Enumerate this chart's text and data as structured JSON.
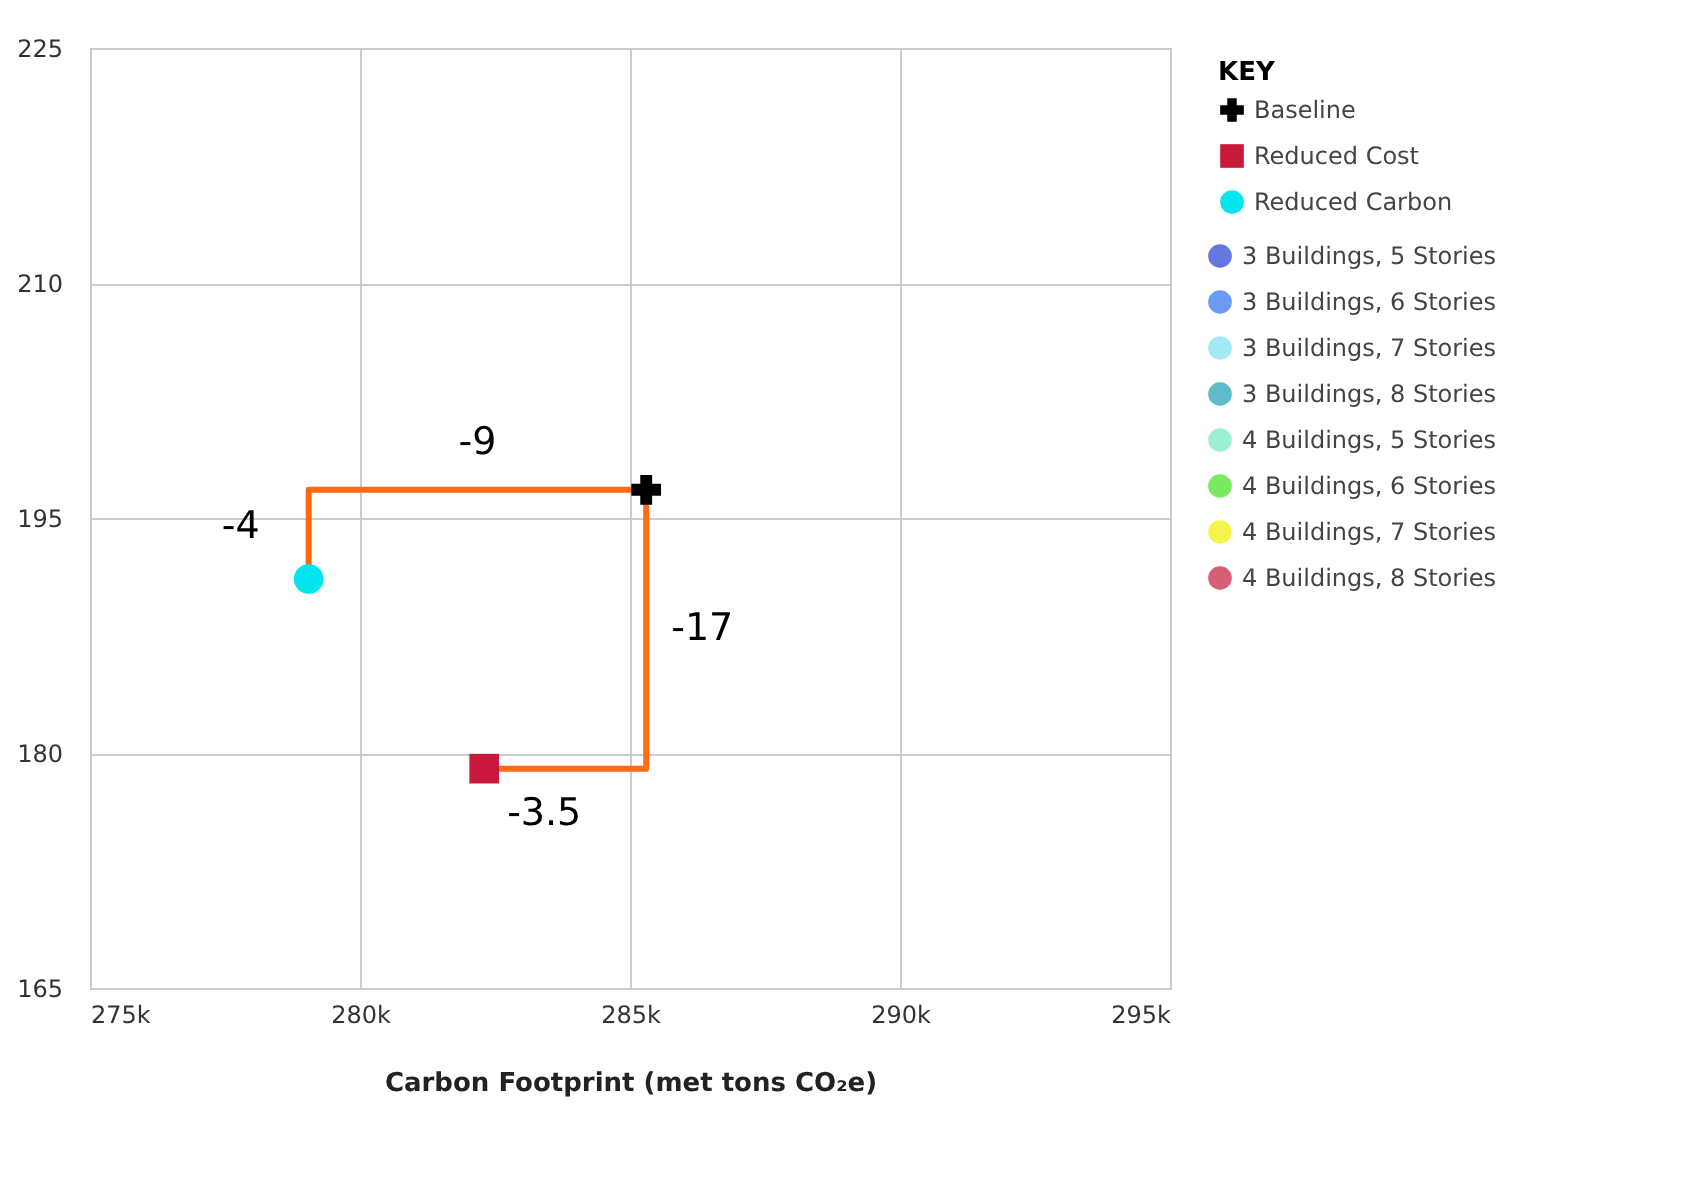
{
  "chart_data": {
    "type": "scatter",
    "xlabel": "Carbon Footprint (met tons CO₂e)",
    "legend_title": "KEY",
    "xlim": [
      275000,
      295000
    ],
    "xticks": [
      {
        "value": 275000,
        "label": "275k"
      },
      {
        "value": 280000,
        "label": "280k"
      },
      {
        "value": 285000,
        "label": "285k"
      },
      {
        "value": 290000,
        "label": "290k"
      },
      {
        "value": 295000,
        "label": "295k"
      }
    ],
    "ylim": [
      165,
      225
    ],
    "yticks": [
      165,
      180,
      195,
      210,
      225
    ],
    "grid": true,
    "legend": "right",
    "series": [
      {
        "type": "line",
        "color": "#ff6a13",
        "line_style": "solid",
        "marker": "none",
        "x": [
          279050,
          279050,
          285300,
          285300,
          282300
        ],
        "values": [
          191.1,
          196.8,
          196.8,
          179,
          179
        ]
      },
      {
        "name": "Baseline",
        "color": "#000000",
        "marker": "cross",
        "x": [
          285300
        ],
        "values": [
          196.8
        ]
      },
      {
        "name": "Reduced Cost",
        "color": "#c8193c",
        "marker": "square",
        "x": [
          282300
        ],
        "values": [
          179
        ]
      },
      {
        "name": "Reduced Carbon",
        "color": "#00e5ee",
        "marker": "circle",
        "x": [
          279050
        ],
        "values": [
          191.1
        ]
      },
      {
        "name": "3 Buildings, 5 Stories",
        "color": "#1f3fd0"
      },
      {
        "name": "3 Buildings, 6 Stories",
        "color": "#2f6ff0"
      },
      {
        "name": "3 Buildings, 7 Stories",
        "color": "#7fe0f0"
      },
      {
        "name": "3 Buildings, 8 Stories",
        "color": "#1aa0b0"
      },
      {
        "name": "4 Buildings, 5 Stories",
        "color": "#70e8c0"
      },
      {
        "name": "4 Buildings, 6 Stories",
        "color": "#40e020"
      },
      {
        "name": "4 Buildings, 7 Stories",
        "color": "#f0f000"
      },
      {
        "name": "4 Buildings, 8 Stories",
        "color": "#c8193c"
      }
    ],
    "annotations": [
      {
        "text": "-9",
        "x": 282175,
        "y": 196.8
      },
      {
        "text": "-4",
        "x": 279050,
        "y": 194
      },
      {
        "text": "-17",
        "x": 285300,
        "y": 188
      },
      {
        "text": "-3.5",
        "x": 282300,
        "y": 179
      }
    ]
  }
}
